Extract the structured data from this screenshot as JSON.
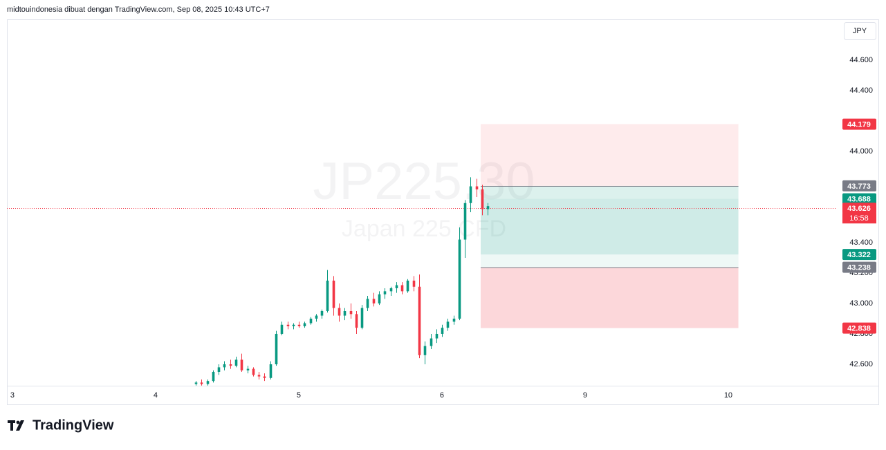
{
  "header": "midtouindonesia dibuat dengan TradingView.com, Sep 08, 2025 10:43 UTC+7",
  "currency": "JPY",
  "logo": "TradingView",
  "chart_data": {
    "type": "candlestick",
    "watermark_symbol": "JP225.30",
    "watermark_description": "Japan 225 CFD",
    "up_color": "#089981",
    "down_color": "#f23645",
    "xlim": [
      -0.019,
      5.778
    ],
    "ylim": [
      42.459,
      44.868
    ],
    "xticks": [
      {
        "value": 0,
        "label": "3"
      },
      {
        "value": 1,
        "label": "4"
      },
      {
        "value": 2,
        "label": "5"
      },
      {
        "value": 3,
        "label": "6"
      },
      {
        "value": 4,
        "label": "9"
      },
      {
        "value": 5,
        "label": "10"
      }
    ],
    "yticks": [
      {
        "value": 42.6,
        "label": "42.600"
      },
      {
        "value": 42.8,
        "label": "42.800"
      },
      {
        "value": 43.0,
        "label": "43.000"
      },
      {
        "value": 43.2,
        "label": "43.200"
      },
      {
        "value": 43.4,
        "label": "43.400"
      },
      {
        "value": 44.0,
        "label": "44.000"
      },
      {
        "value": 44.4,
        "label": "44.400"
      },
      {
        "value": 44.6,
        "label": "44.600"
      }
    ],
    "x": [
      1.3,
      1.34,
      1.38,
      1.42,
      1.46,
      1.5,
      1.54,
      1.58,
      1.62,
      1.66,
      1.7,
      1.74,
      1.78,
      1.82,
      1.86,
      1.9,
      1.94,
      1.98,
      2.02,
      2.06,
      2.1,
      2.14,
      2.18,
      2.22,
      2.26,
      2.3,
      2.34,
      2.38,
      2.42,
      2.46,
      2.5,
      2.54,
      2.58,
      2.62,
      2.66,
      2.7,
      2.74,
      2.78,
      2.82,
      2.86,
      2.9,
      2.94,
      2.98,
      3.02,
      3.06,
      3.1,
      3.14,
      3.18,
      3.22,
      3.26,
      3.3,
      3.34
    ],
    "open": [
      42.47,
      42.48,
      42.47,
      42.49,
      42.55,
      42.58,
      42.6,
      42.59,
      42.63,
      42.56,
      42.57,
      42.53,
      42.52,
      42.51,
      42.6,
      42.8,
      42.86,
      42.85,
      42.86,
      42.85,
      42.87,
      42.9,
      42.92,
      42.95,
      43.15,
      42.97,
      42.92,
      42.95,
      42.93,
      42.84,
      42.97,
      43.03,
      43.0,
      43.06,
      43.08,
      43.1,
      43.12,
      43.08,
      43.15,
      43.11,
      42.66,
      42.72,
      42.77,
      42.8,
      42.84,
      42.88,
      42.9,
      43.42,
      43.66,
      43.77,
      43.75,
      43.62
    ],
    "high": [
      42.49,
      42.5,
      42.5,
      42.56,
      42.6,
      42.62,
      42.63,
      42.65,
      42.67,
      42.59,
      42.58,
      42.55,
      42.54,
      42.62,
      42.82,
      42.88,
      42.88,
      42.87,
      42.88,
      42.88,
      42.91,
      42.93,
      42.96,
      43.22,
      43.18,
      43.0,
      42.97,
      43.0,
      42.95,
      42.99,
      43.05,
      43.07,
      43.08,
      43.1,
      43.11,
      43.14,
      43.14,
      43.16,
      43.18,
      43.19,
      42.75,
      42.8,
      42.83,
      42.86,
      42.9,
      42.92,
      43.5,
      43.68,
      43.83,
      43.82,
      43.78,
      43.66
    ],
    "low": [
      42.46,
      42.46,
      42.46,
      42.48,
      42.53,
      42.56,
      42.57,
      42.58,
      42.55,
      42.54,
      42.52,
      42.5,
      42.49,
      42.5,
      42.59,
      42.79,
      42.83,
      42.83,
      42.84,
      42.84,
      42.86,
      42.88,
      42.9,
      42.94,
      42.92,
      42.88,
      42.89,
      42.9,
      42.8,
      42.83,
      42.95,
      42.98,
      42.99,
      43.03,
      43.05,
      43.07,
      43.06,
      43.07,
      43.08,
      42.64,
      42.6,
      42.7,
      42.74,
      42.78,
      42.82,
      42.86,
      42.89,
      43.3,
      43.6,
      43.7,
      43.58,
      43.58
    ],
    "close": [
      42.48,
      42.47,
      42.49,
      42.55,
      42.58,
      42.6,
      42.59,
      42.63,
      42.56,
      42.57,
      42.53,
      42.52,
      42.51,
      42.6,
      42.8,
      42.86,
      42.85,
      42.86,
      42.85,
      42.87,
      42.9,
      42.92,
      42.95,
      43.15,
      42.97,
      42.92,
      42.95,
      42.93,
      42.84,
      42.97,
      43.03,
      43.0,
      43.06,
      43.08,
      43.1,
      43.12,
      43.08,
      43.15,
      43.11,
      42.66,
      42.72,
      42.77,
      42.8,
      42.84,
      42.88,
      42.9,
      43.42,
      43.66,
      43.77,
      43.75,
      43.62,
      43.64
    ],
    "last_price": 43.626,
    "countdown": "16:58",
    "position": {
      "x_start": 3.29,
      "x_end": 5.09,
      "zones": [
        {
          "top": 44.179,
          "bottom": 43.773,
          "color": "rgba(242,54,69,0.10)"
        },
        {
          "top": 43.773,
          "bottom": 43.322,
          "color": "rgba(8,153,129,0.14)"
        },
        {
          "top": 43.688,
          "bottom": 43.322,
          "color": "rgba(8,153,129,0.06)"
        },
        {
          "top": 43.322,
          "bottom": 43.238,
          "color": "rgba(8,153,129,0.07)"
        },
        {
          "top": 43.238,
          "bottom": 42.838,
          "color": "rgba(242,54,69,0.20)"
        }
      ]
    },
    "price_labels": [
      {
        "value": 44.179,
        "color": "#f23645"
      },
      {
        "value": 43.773,
        "color": "#787b86"
      },
      {
        "value": 43.688,
        "color": "#089981"
      },
      {
        "value": 43.322,
        "color": "#089981"
      },
      {
        "value": 43.238,
        "color": "#787b86"
      },
      {
        "value": 42.838,
        "color": "#f23645"
      }
    ]
  }
}
